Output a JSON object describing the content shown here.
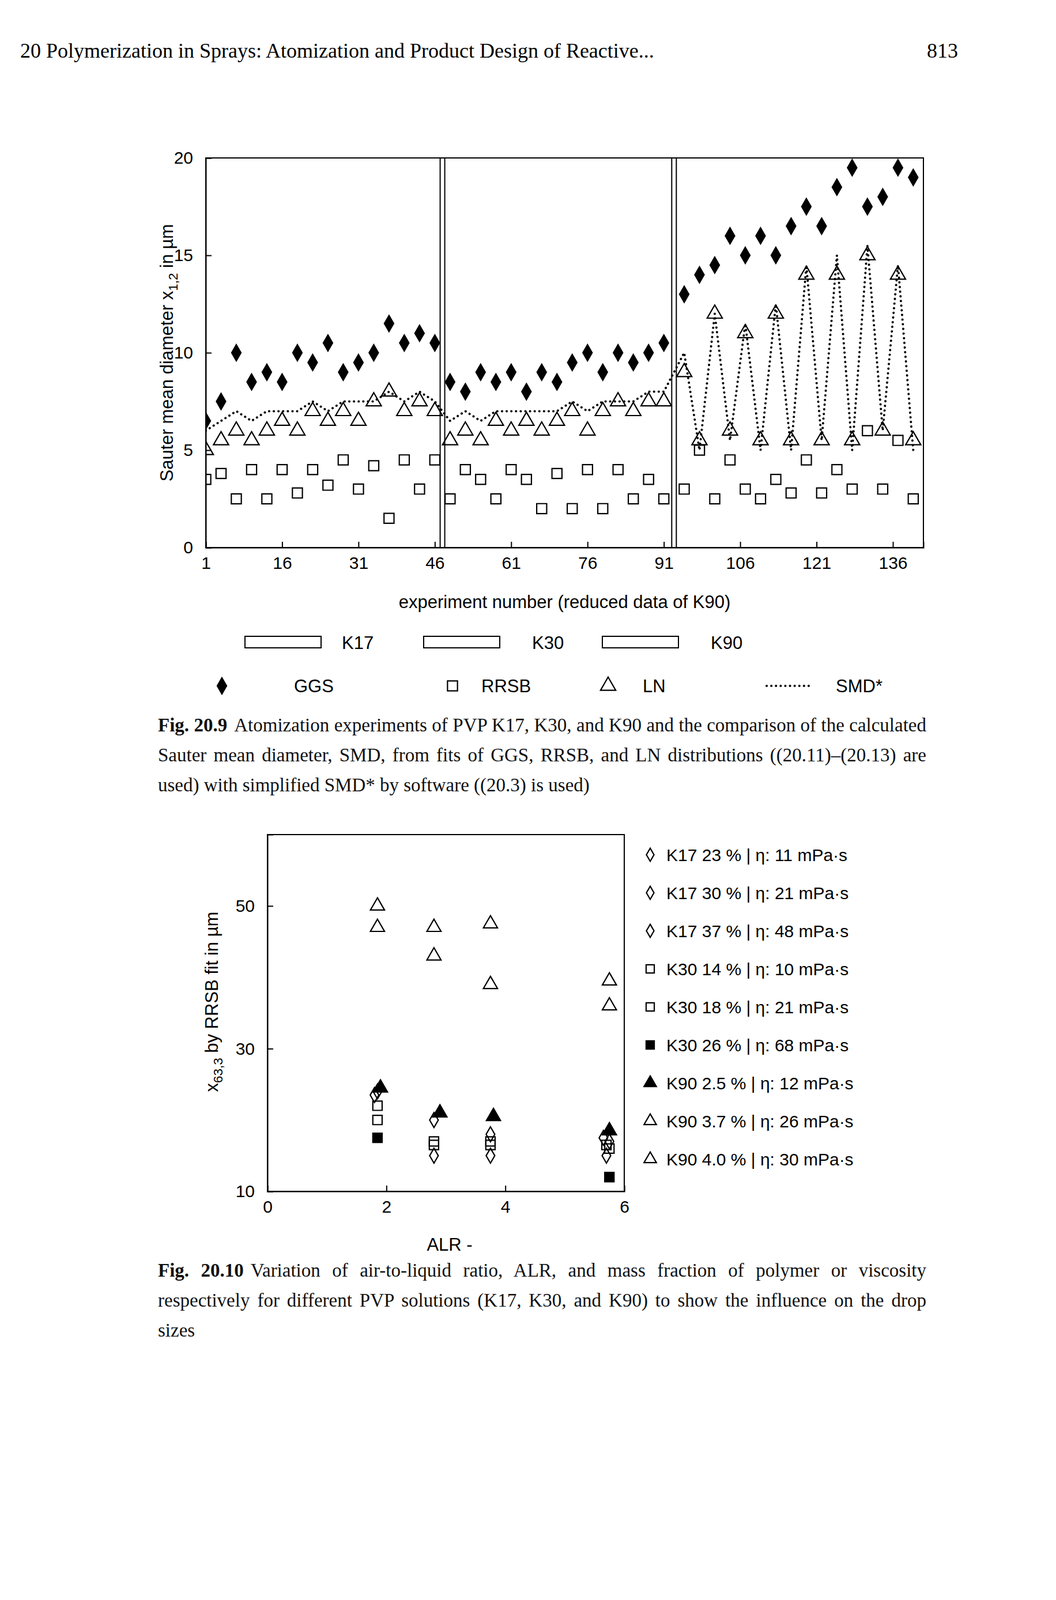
{
  "header": {
    "left": "20 Polymerization in Sprays: Atomization and Product Design of Reactive...",
    "page": "813"
  },
  "chart_data": [
    {
      "type": "scatter",
      "xlabel": "experiment number (reduced data of K90)",
      "ylabel_parts": [
        {
          "text": "Sauter mean diameter x"
        },
        {
          "text": "1,2",
          "sub": true
        },
        {
          "text": " in µm"
        }
      ],
      "xlim": [
        1,
        142
      ],
      "ylim": [
        0,
        20
      ],
      "xticks": [
        1,
        16,
        31,
        46,
        61,
        76,
        91,
        106,
        121,
        136
      ],
      "yticks": [
        0,
        5,
        10,
        15,
        20
      ],
      "sections": [
        {
          "name": "K17",
          "start": 1,
          "end": 47.5
        },
        {
          "name": "K30",
          "start": 47.5,
          "end": 93
        },
        {
          "name": "K90",
          "start": 93,
          "end": 142
        }
      ],
      "x": [
        1,
        4,
        7,
        10,
        13,
        16,
        19,
        22,
        25,
        28,
        31,
        34,
        37,
        40,
        43,
        46,
        49,
        52,
        55,
        58,
        61,
        64,
        67,
        70,
        73,
        76,
        79,
        82,
        85,
        88,
        91,
        95,
        98,
        101,
        104,
        107,
        110,
        113,
        116,
        119,
        122,
        125,
        128,
        131,
        134,
        137,
        140
      ],
      "series": [
        {
          "name": "GGS",
          "marker": "diamond-filled",
          "color": "#000000",
          "values": [
            6.5,
            7.5,
            10,
            8.5,
            9,
            8.5,
            10,
            9.5,
            10.5,
            9,
            9.5,
            10,
            11.5,
            10.5,
            11,
            10.5,
            8.5,
            8,
            9,
            8.5,
            9,
            8,
            9,
            8.5,
            9.5,
            10,
            9,
            10,
            9.5,
            10,
            10.5,
            13,
            14,
            14.5,
            16,
            15,
            16,
            15,
            16.5,
            17.5,
            16.5,
            18.5,
            19.5,
            17.5,
            18,
            19.5,
            19
          ]
        },
        {
          "name": "RRSB",
          "marker": "square-open",
          "color": "#000000",
          "values": [
            3.5,
            3.8,
            2.5,
            4,
            2.5,
            4,
            2.8,
            4,
            3.2,
            4.5,
            3,
            4.2,
            1.5,
            4.5,
            3,
            4.5,
            2.5,
            4,
            3.5,
            2.5,
            4,
            3.5,
            2,
            3.8,
            2,
            4,
            2,
            4,
            2.5,
            3.5,
            2.5,
            3,
            5,
            2.5,
            4.5,
            3,
            2.5,
            3.5,
            2.8,
            4.5,
            2.8,
            4,
            3,
            6,
            3,
            5.5,
            2.5
          ]
        },
        {
          "name": "LN",
          "marker": "triangle-open",
          "color": "#000000",
          "values": [
            5,
            5.5,
            6,
            5.5,
            6,
            6.5,
            6,
            7,
            6.5,
            7,
            6.5,
            7.5,
            8,
            7,
            7.5,
            7,
            5.5,
            6,
            5.5,
            6.5,
            6,
            6.5,
            6,
            6.5,
            7,
            6,
            7,
            7.5,
            7,
            7.5,
            7.5,
            9,
            5.5,
            12,
            6,
            11,
            5.5,
            12,
            5.5,
            14,
            5.5,
            14,
            5.5,
            15,
            6,
            14,
            5.5
          ]
        },
        {
          "name": "SMD*",
          "type": "line",
          "line_style": "dotted",
          "color": "#000000",
          "values": [
            6,
            6.5,
            7,
            6.5,
            7,
            7,
            7,
            7.5,
            7,
            7.5,
            7.5,
            7.5,
            8,
            7.5,
            8,
            7.5,
            6.5,
            7,
            6.5,
            7,
            7,
            7,
            7,
            7,
            7.5,
            7,
            7.5,
            7.5,
            7.5,
            8,
            8,
            10,
            5,
            12,
            5.5,
            11.5,
            5,
            12.5,
            5,
            14.5,
            5.5,
            15,
            5,
            15.5,
            6,
            14.5,
            5
          ]
        }
      ],
      "caption_label": "Fig. 20.9",
      "caption": "Atomization experiments of PVP K17, K30, and K90 and the comparison of the calculated Sauter mean diameter, SMD, from fits of GGS, RRSB, and LN distributions ((20.11)–(20.13) are used) with simplified SMD* by software ((20.3) is used)"
    },
    {
      "type": "scatter",
      "xlabel": "ALR -",
      "ylabel_parts": [
        {
          "text": "x"
        },
        {
          "text": "63,3",
          "sub": true
        },
        {
          "text": " by RRSB fit in µm"
        }
      ],
      "xlim": [
        0,
        6
      ],
      "ylim": [
        10,
        60
      ],
      "xticks": [
        0,
        2,
        4,
        6
      ],
      "yticks": [
        10,
        30,
        50
      ],
      "series": [
        {
          "name": "K17 23 % | η: 11 mPa·s",
          "marker": "diamond-open",
          "color": "#000000",
          "x": [
            1.85,
            2.8,
            3.75,
            5.7
          ],
          "values": [
            24,
            15,
            15,
            15
          ]
        },
        {
          "name": "K17 30 % | η: 21 mPa·s",
          "marker": "diamond-open",
          "color": "#000000",
          "x": [
            2.8,
            3.75,
            5.65
          ],
          "values": [
            20,
            18,
            17.5
          ]
        },
        {
          "name": "K17 37 % | η: 48 mPa·s",
          "marker": "diamond-open",
          "color": "#000000",
          "x": [
            1.8,
            5.75
          ],
          "values": [
            23.5,
            17
          ]
        },
        {
          "name": "K30 14 % | η: 10 mPa·s",
          "marker": "square-open",
          "color": "#000000",
          "x": [
            1.85,
            2.8,
            3.75,
            5.75
          ],
          "values": [
            20,
            16.5,
            16.5,
            16
          ]
        },
        {
          "name": "K30 18 % | η: 21 mPa·s",
          "marker": "square-open",
          "color": "#000000",
          "x": [
            1.85,
            2.8,
            3.75,
            5.7
          ],
          "values": [
            22,
            17,
            17,
            16.5
          ]
        },
        {
          "name": "K30 26 % | η: 68 mPa·s",
          "marker": "square-filled",
          "color": "#000000",
          "x": [
            1.85,
            5.75
          ],
          "values": [
            17.5,
            12
          ]
        },
        {
          "name": "K90 2.5 % | η: 12 mPa·s",
          "marker": "triangle-filled",
          "color": "#000000",
          "x": [
            1.9,
            2.9,
            3.8,
            5.75
          ],
          "values": [
            24.5,
            21,
            20.5,
            18.5
          ]
        },
        {
          "name": "K90 3.7 % | η: 26 mPa·s",
          "marker": "triangle-open",
          "color": "#000000",
          "x": [
            1.85,
            2.8,
            3.75,
            5.75
          ],
          "values": [
            47,
            43,
            39,
            36
          ]
        },
        {
          "name": "K90 4.0 % | η: 30 mPa·s",
          "marker": "triangle-open",
          "color": "#000000",
          "x": [
            1.85,
            2.8,
            3.75,
            5.75
          ],
          "values": [
            50,
            47,
            47.5,
            39.5
          ]
        }
      ],
      "caption_label": "Fig. 20.10",
      "caption": "Variation of air-to-liquid ratio, ALR, and mass fraction of polymer or viscosity respectively for different PVP solutions (K17, K30, and K90) to show the influence on the drop sizes"
    }
  ]
}
